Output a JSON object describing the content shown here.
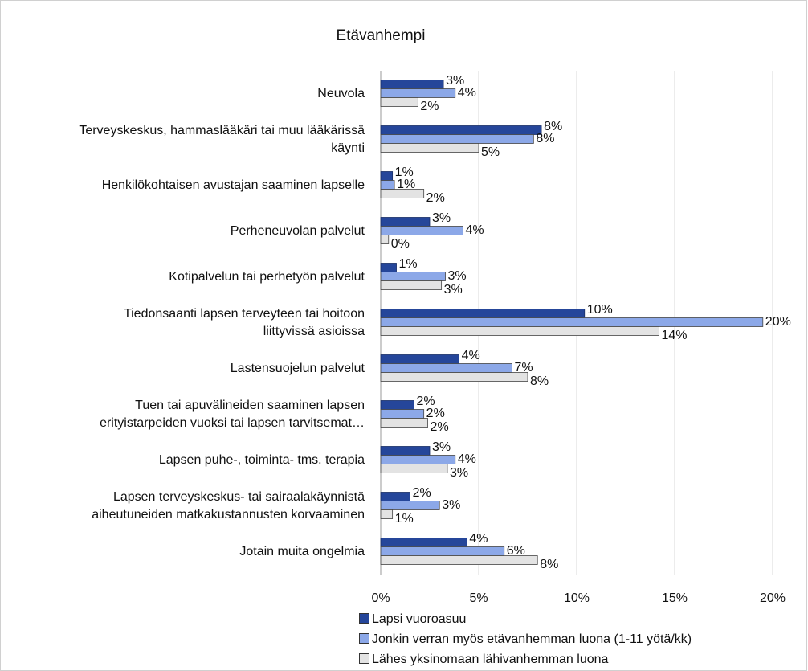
{
  "chart_data": {
    "type": "bar",
    "orientation": "horizontal",
    "title": "Etävanhempi",
    "categories": [
      "Neuvola",
      "Terveyskeskus, hammaslääkäri tai muu lääkärissä\nkäynti",
      "Henkilökohtaisen avustajan saaminen lapselle",
      "Perheneuvolan palvelut",
      "Kotipalvelun tai perhetyön palvelut",
      "Tiedonsaanti lapsen terveyteen tai hoitoon\nliittyvissä asioissa",
      "Lastensuojelun palvelut",
      "Tuen tai apuvälineiden saaminen lapsen\nerityistarpeiden vuoksi tai lapsen tarvitsemat…",
      "Lapsen puhe-, toiminta- tms. terapia",
      "Lapsen terveyskeskus- tai sairaalakäynnistä\naiheutuneiden matkakustannusten korvaaminen",
      "Jotain muita ongelmia"
    ],
    "series": [
      {
        "name": "Lapsi vuoroasuu",
        "color": "#25469a",
        "values": [
          3.2,
          8.2,
          0.6,
          2.5,
          0.8,
          10.4,
          4.0,
          1.7,
          2.5,
          1.5,
          4.4
        ],
        "value_labels": [
          "3%",
          "8%",
          "1%",
          "3%",
          "1%",
          "10%",
          "4%",
          "2%",
          "3%",
          "2%",
          "4%"
        ]
      },
      {
        "name": "Jonkin verran myös etävanhemman luona (1-11 yötä/kk)",
        "color": "#8ca8e8",
        "values": [
          3.8,
          7.8,
          0.7,
          4.2,
          3.3,
          19.5,
          6.7,
          2.2,
          3.8,
          3.0,
          6.3
        ],
        "value_labels": [
          "4%",
          "8%",
          "1%",
          "4%",
          "3%",
          "20%",
          "7%",
          "2%",
          "4%",
          "3%",
          "6%"
        ]
      },
      {
        "name": "Lähes yksinomaan lähivanhemman luona",
        "color": "#e3e3e3",
        "values": [
          1.9,
          5.0,
          2.2,
          0.4,
          3.1,
          14.2,
          7.5,
          2.4,
          3.4,
          0.6,
          8.0
        ],
        "value_labels": [
          "2%",
          "5%",
          "2%",
          "0%",
          "3%",
          "14%",
          "8%",
          "2%",
          "3%",
          "1%",
          "8%"
        ]
      }
    ],
    "xlim": [
      0,
      20
    ],
    "xticks": [
      {
        "value": 0,
        "label": "0%"
      },
      {
        "value": 5,
        "label": "5%"
      },
      {
        "value": 10,
        "label": "10%"
      },
      {
        "value": 15,
        "label": "15%"
      },
      {
        "value": 20,
        "label": "20%"
      }
    ],
    "grid": true,
    "legend": "bottom-left"
  }
}
